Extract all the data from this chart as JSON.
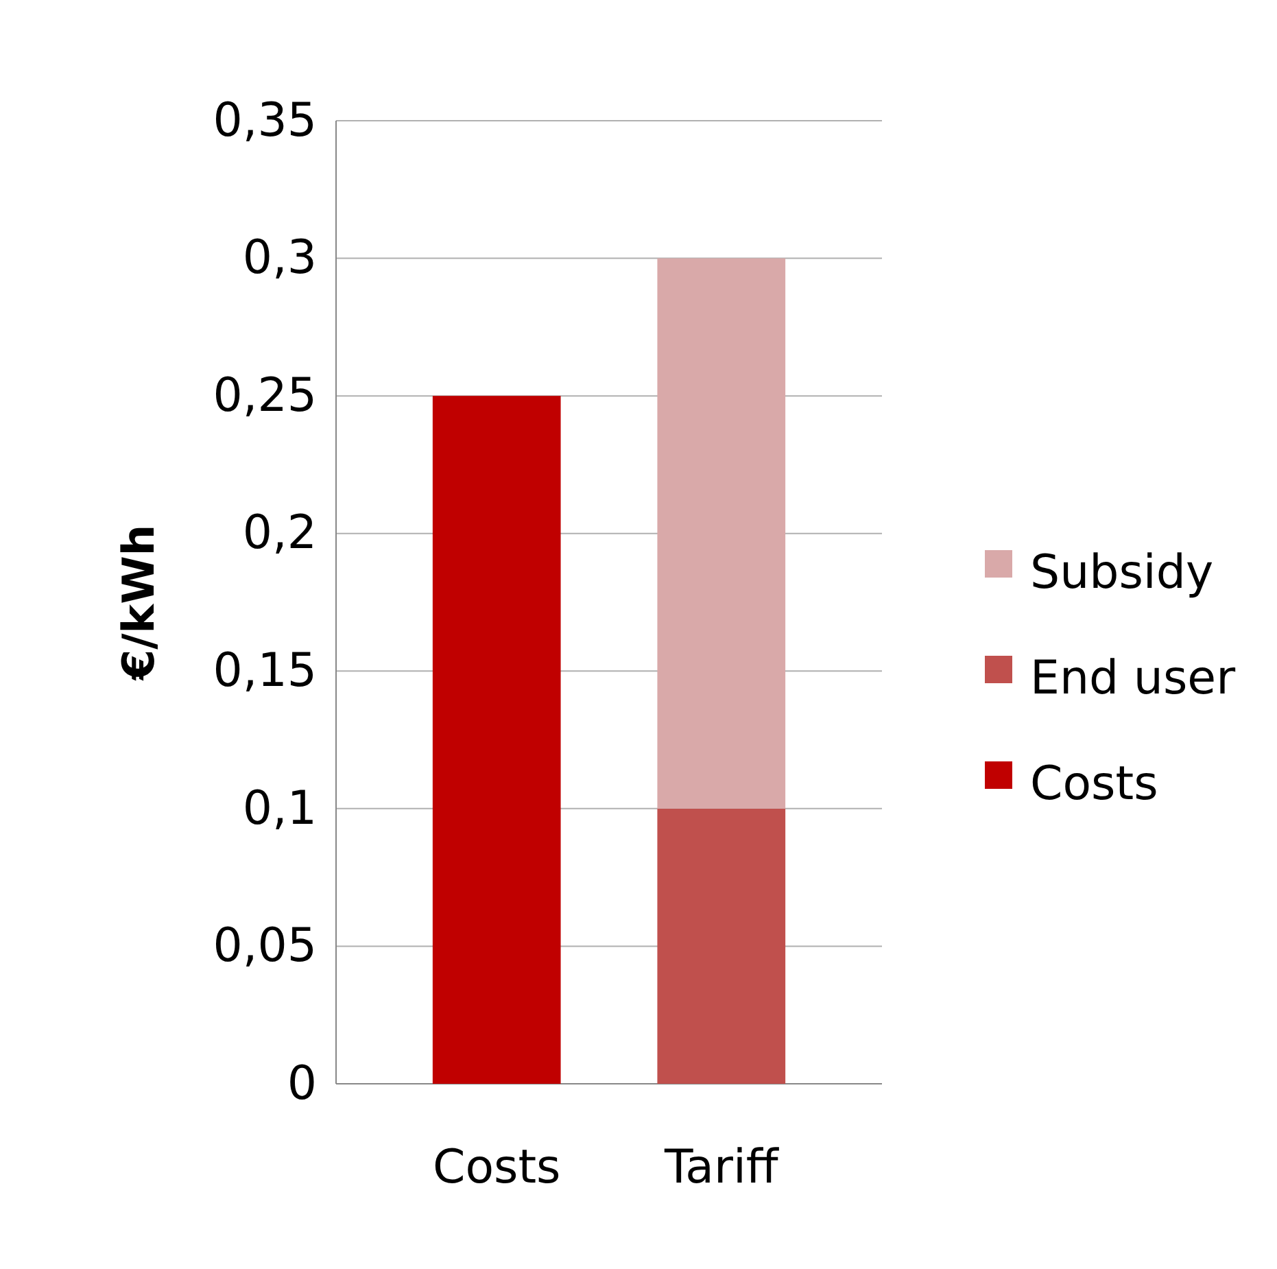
{
  "chart_data": {
    "type": "bar",
    "stacked": true,
    "ylabel": "€/kWh",
    "categories": [
      "Costs",
      "Tariff"
    ],
    "series": [
      {
        "name": "Costs",
        "color": "#c00000",
        "values": [
          0.25,
          null
        ]
      },
      {
        "name": "End user",
        "color": "#c0504d",
        "values": [
          null,
          0.1
        ]
      },
      {
        "name": "Subsidy",
        "color": "#d9a9a9",
        "values": [
          null,
          0.2
        ]
      }
    ],
    "ylim": [
      0,
      0.35
    ],
    "yticks": [
      {
        "value": 0,
        "label": "0"
      },
      {
        "value": 0.05,
        "label": "0,05"
      },
      {
        "value": 0.1,
        "label": "0,1"
      },
      {
        "value": 0.15,
        "label": "0,15"
      },
      {
        "value": 0.2,
        "label": "0,2"
      },
      {
        "value": 0.25,
        "label": "0,25"
      },
      {
        "value": 0.3,
        "label": "0,3"
      },
      {
        "value": 0.35,
        "label": "0,35"
      }
    ],
    "grid": "y",
    "legend": "right"
  }
}
